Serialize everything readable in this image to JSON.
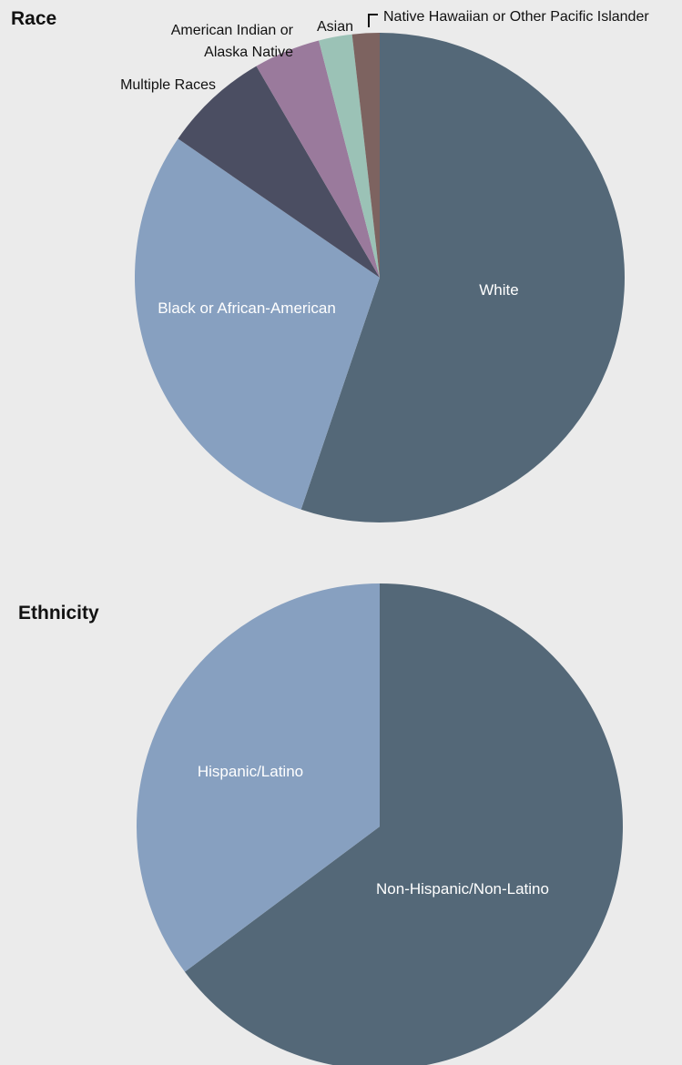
{
  "chart_data": [
    {
      "type": "pie",
      "title": "Race",
      "start_angle_deg": 0,
      "direction": "clockwise",
      "slices": [
        {
          "label": "White",
          "value": 55.2,
          "color": "#546878",
          "label_style": "inside"
        },
        {
          "label": "Black or African-American",
          "value": 29.4,
          "color": "#87a0c0",
          "label_style": "inside"
        },
        {
          "label": "Multiple Races",
          "value": 7.0,
          "color": "#4b4e62",
          "label_style": "outside"
        },
        {
          "label": "American Indian or Alaska Native",
          "label_lines": [
            "American Indian or",
            "Alaska Native"
          ],
          "value": 4.4,
          "color": "#9a7a9c",
          "label_style": "outside"
        },
        {
          "label": "Asian",
          "value": 2.2,
          "color": "#9bc2b6",
          "label_style": "outside"
        },
        {
          "label": "Native Hawaiian or Other Pacific Islander",
          "value": 1.8,
          "color": "#7d6360",
          "label_style": "outside"
        }
      ]
    },
    {
      "type": "pie",
      "title": "Ethnicity",
      "start_angle_deg": 0,
      "direction": "clockwise",
      "slices": [
        {
          "label": "Non-Hispanic/Non-Latino",
          "value": 64.8,
          "color": "#546878",
          "label_style": "inside"
        },
        {
          "label": "Hispanic/Latino",
          "value": 35.2,
          "color": "#87a0c0",
          "label_style": "inside"
        }
      ]
    }
  ]
}
